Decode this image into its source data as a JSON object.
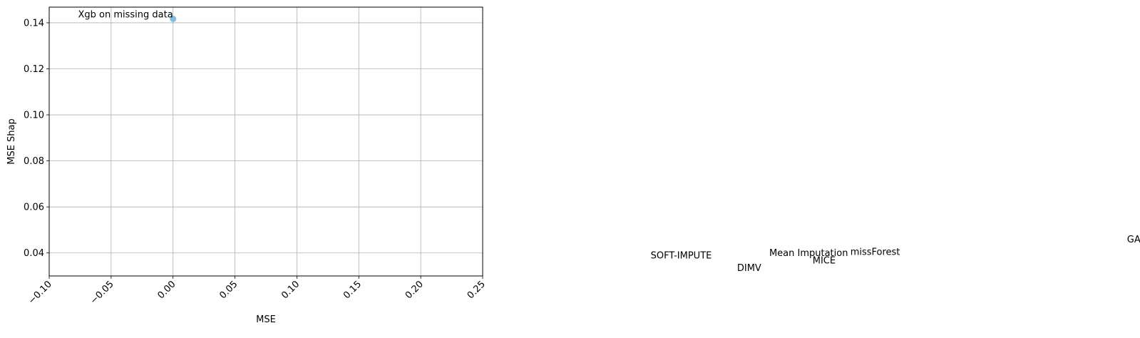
{
  "chart_data": {
    "type": "scatter",
    "title": "",
    "xlabel": "MSE",
    "ylabel": "MSE Shap",
    "xlim": [
      -0.1,
      0.25
    ],
    "ylim": [
      0.03,
      0.1468
    ],
    "grid": true,
    "x_ticks": [
      -0.1,
      -0.05,
      0.0,
      0.05,
      0.1,
      0.15,
      0.2,
      0.25
    ],
    "x_tick_labels": [
      "−0.10",
      "−0.05",
      "0.00",
      "0.05",
      "0.10",
      "0.15",
      "0.20",
      "0.25"
    ],
    "y_ticks": [
      0.04,
      0.06,
      0.08,
      0.1,
      0.12,
      0.14
    ],
    "y_tick_labels": [
      "0.04",
      "0.06",
      "0.08",
      "0.10",
      "0.12",
      "0.14"
    ],
    "marker_color": "#7fbfdf",
    "points": [
      {
        "label": "Xgb on missing data",
        "x": 0.0,
        "y": 0.1417
      }
    ],
    "annotations": [
      {
        "text": "Xgb on missing data",
        "x": 0.0,
        "y": 0.1417
      },
      {
        "text": "SOFT-IMPUTE",
        "x": 0.435,
        "y": 0.037
      },
      {
        "text": "DIMV",
        "x": 0.475,
        "y": 0.0315
      },
      {
        "text": "MICE",
        "x": 0.535,
        "y": 0.0348
      },
      {
        "text": "Mean Imputation",
        "x": 0.545,
        "y": 0.038
      },
      {
        "text": "missForest",
        "x": 0.587,
        "y": 0.0385
      },
      {
        "text": "GAIN",
        "x": 0.789,
        "y": 0.044
      }
    ]
  }
}
